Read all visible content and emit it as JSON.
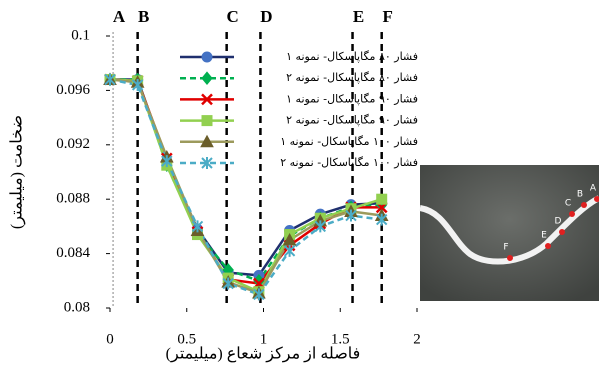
{
  "chart_data": {
    "type": "line",
    "x_label": "فاصله از مرکز شعاع (میلیمتر)",
    "y_label": "ضخامت (میلیمتر)",
    "x": [
      0,
      0.18,
      0.37,
      0.57,
      0.77,
      0.97,
      1.17,
      1.37,
      1.57,
      1.77
    ],
    "series": [
      {
        "name": "فشار ۸۰ مگاپاسکال- نمونه ۱",
        "color": "#4472c4",
        "line_color": "#1f2f6e",
        "marker": "circle",
        "dashed": false,
        "values": [
          0.0968,
          0.0968,
          0.0908,
          0.0858,
          0.0826,
          0.0824,
          0.0857,
          0.0869,
          0.0876,
          0.0877
        ]
      },
      {
        "name": "فشار ۸۰ مگاپاسکال- نمونه ۲",
        "color": "#00b050",
        "line_color": "#00b050",
        "marker": "diamond",
        "dashed": true,
        "values": [
          0.0968,
          0.0968,
          0.0905,
          0.0855,
          0.0828,
          0.082,
          0.0853,
          0.0866,
          0.0874,
          0.0876
        ]
      },
      {
        "name": "فشار ۹۰ مگاپاسکال- نمونه ۱",
        "color": "#e00000",
        "line_color": "#e00000",
        "marker": "x",
        "dashed": false,
        "values": [
          0.0968,
          0.0967,
          0.091,
          0.0856,
          0.0821,
          0.0818,
          0.0846,
          0.0862,
          0.0874,
          0.0874
        ]
      },
      {
        "name": "فشار ۹۰ مگاپاسکال- نمونه ۲",
        "color": "#92d050",
        "line_color": "#92d050",
        "marker": "square",
        "dashed": false,
        "values": [
          0.0968,
          0.0967,
          0.0905,
          0.0854,
          0.0822,
          0.0812,
          0.0854,
          0.0866,
          0.0873,
          0.088
        ]
      },
      {
        "name": "فشار ۱۰۰ مگاپاسکال- نمونه ۱",
        "color": "#6b5e2a",
        "line_color": "#9c9a5c",
        "marker": "triangle",
        "dashed": false,
        "values": [
          0.0968,
          0.0966,
          0.0911,
          0.0857,
          0.0819,
          0.0811,
          0.085,
          0.0864,
          0.0871,
          0.0868
        ]
      },
      {
        "name": "فشار ۱۰۰ مگاپاسکال- نمونه ۲",
        "color": "#4bacc6",
        "line_color": "#4bacc6",
        "marker": "star",
        "dashed": true,
        "values": [
          0.0968,
          0.0964,
          0.0908,
          0.086,
          0.0818,
          0.081,
          0.0842,
          0.086,
          0.0868,
          0.0865
        ]
      }
    ],
    "markers": [
      {
        "label": "A",
        "x": 0.02
      },
      {
        "label": "B",
        "x": 0.18
      },
      {
        "label": "C",
        "x": 0.76
      },
      {
        "label": "D",
        "x": 0.98
      },
      {
        "label": "E",
        "x": 1.58
      },
      {
        "label": "F",
        "x": 1.77
      }
    ],
    "xlim": [
      0,
      2
    ],
    "xticks": [
      0,
      0.5,
      1,
      1.5,
      2
    ],
    "ylim": [
      0.08,
      0.1
    ],
    "yticks": [
      0.08,
      0.084,
      0.088,
      0.092,
      0.096,
      0.1
    ],
    "legend": "top-right"
  },
  "inset": {
    "labels": [
      "F",
      "E",
      "D",
      "C",
      "B",
      "A"
    ]
  }
}
